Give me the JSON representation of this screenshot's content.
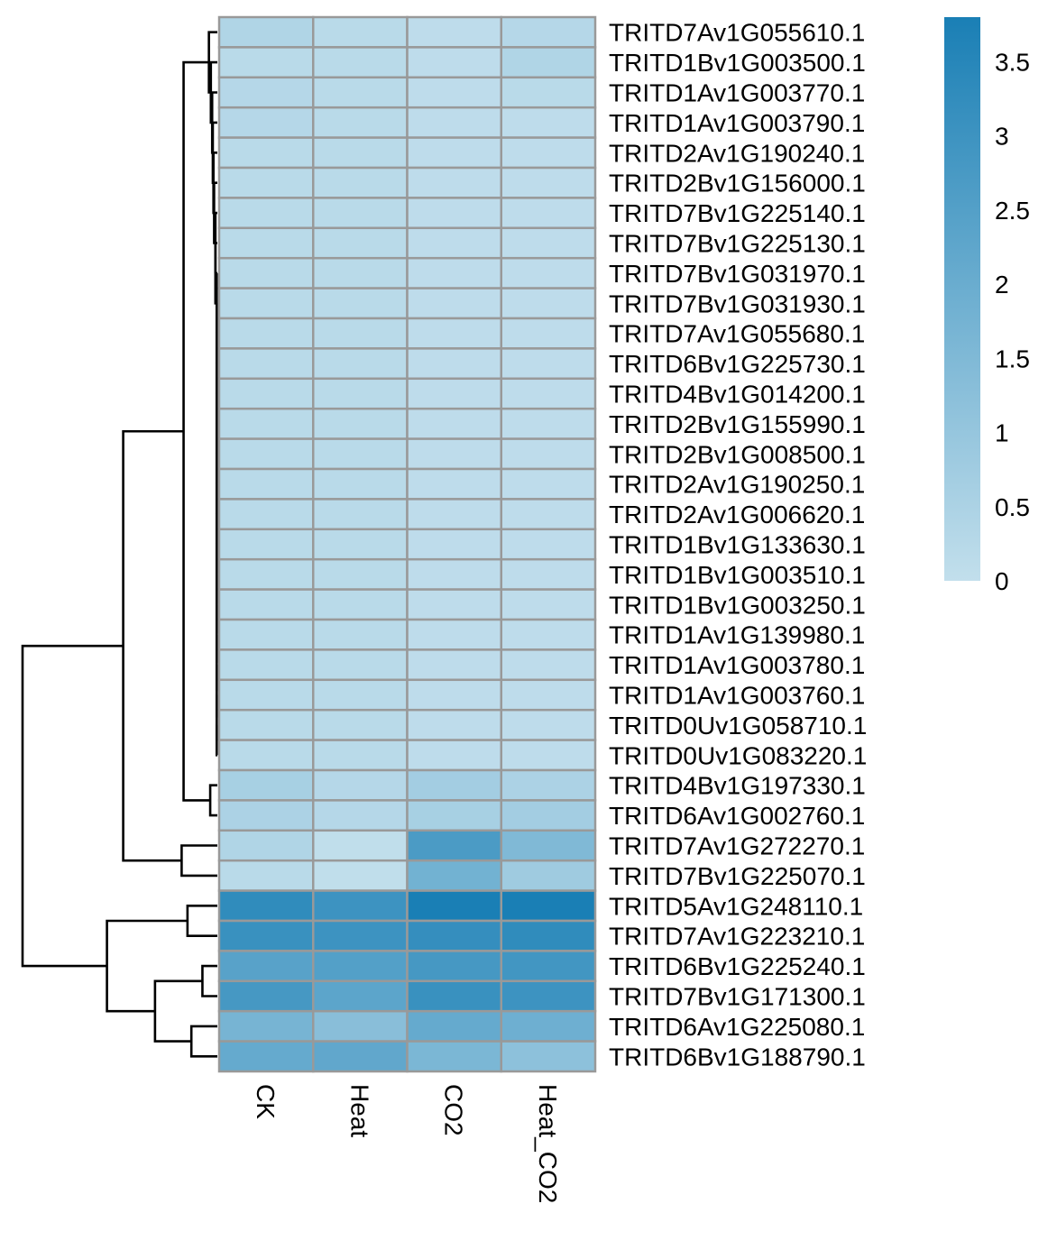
{
  "chart_data": {
    "type": "heatmap",
    "columns": [
      "CK",
      "Heat",
      "CO2",
      "Heat_CO2"
    ],
    "rows": [
      "TRITD7Av1G055610.1",
      "TRITD1Bv1G003500.1",
      "TRITD1Av1G003770.1",
      "TRITD1Av1G003790.1",
      "TRITD2Av1G190240.1",
      "TRITD2Bv1G156000.1",
      "TRITD7Bv1G225140.1",
      "TRITD7Bv1G225130.1",
      "TRITD7Bv1G031970.1",
      "TRITD7Bv1G031930.1",
      "TRITD7Av1G055680.1",
      "TRITD6Bv1G225730.1",
      "TRITD4Bv1G014200.1",
      "TRITD2Bv1G155990.1",
      "TRITD2Bv1G008500.1",
      "TRITD2Av1G190250.1",
      "TRITD2Av1G006620.1",
      "TRITD1Bv1G133630.1",
      "TRITD1Bv1G003510.1",
      "TRITD1Bv1G003250.1",
      "TRITD1Av1G139980.1",
      "TRITD1Av1G003780.1",
      "TRITD1Av1G003760.1",
      "TRITD0Uv1G058710.1",
      "TRITD0Uv1G083220.1",
      "TRITD4Bv1G197330.1",
      "TRITD6Av1G002760.1",
      "TRITD7Av1G272270.1",
      "TRITD7Bv1G225070.1",
      "TRITD5Av1G248110.1",
      "TRITD7Av1G223210.1",
      "TRITD6Bv1G225240.1",
      "TRITD7Bv1G171300.1",
      "TRITD6Av1G225080.1",
      "TRITD6Bv1G188790.1"
    ],
    "values": [
      [
        0.4,
        0.2,
        0.1,
        0.3
      ],
      [
        0.2,
        0.2,
        0.1,
        0.4
      ],
      [
        0.3,
        0.2,
        0.1,
        0.2
      ],
      [
        0.3,
        0.2,
        0.1,
        0.1
      ],
      [
        0.2,
        0.2,
        0.1,
        0.1
      ],
      [
        0.2,
        0.2,
        0.1,
        0.1
      ],
      [
        0.2,
        0.2,
        0.1,
        0.1
      ],
      [
        0.2,
        0.2,
        0.1,
        0.1
      ],
      [
        0.2,
        0.2,
        0.1,
        0.1
      ],
      [
        0.2,
        0.2,
        0.1,
        0.1
      ],
      [
        0.2,
        0.2,
        0.1,
        0.1
      ],
      [
        0.2,
        0.2,
        0.1,
        0.1
      ],
      [
        0.2,
        0.2,
        0.1,
        0.1
      ],
      [
        0.2,
        0.2,
        0.1,
        0.1
      ],
      [
        0.2,
        0.2,
        0.1,
        0.1
      ],
      [
        0.2,
        0.2,
        0.1,
        0.1
      ],
      [
        0.2,
        0.2,
        0.1,
        0.1
      ],
      [
        0.2,
        0.2,
        0.1,
        0.1
      ],
      [
        0.2,
        0.2,
        0.1,
        0.1
      ],
      [
        0.2,
        0.2,
        0.1,
        0.1
      ],
      [
        0.2,
        0.2,
        0.1,
        0.1
      ],
      [
        0.2,
        0.2,
        0.1,
        0.1
      ],
      [
        0.2,
        0.2,
        0.1,
        0.1
      ],
      [
        0.2,
        0.2,
        0.1,
        0.1
      ],
      [
        0.2,
        0.2,
        0.1,
        0.1
      ],
      [
        0.6,
        0.3,
        0.7,
        0.5
      ],
      [
        0.5,
        0.3,
        0.6,
        0.7
      ],
      [
        0.4,
        0.05,
        2.7,
        1.5
      ],
      [
        0.2,
        0.05,
        1.8,
        0.8
      ],
      [
        3.3,
        3.0,
        3.8,
        3.8
      ],
      [
        3.1,
        3.0,
        3.2,
        3.3
      ],
      [
        2.4,
        2.5,
        2.8,
        2.9
      ],
      [
        2.8,
        2.3,
        3.1,
        3.0
      ],
      [
        1.7,
        1.3,
        2.1,
        1.9
      ],
      [
        2.1,
        2.2,
        1.6,
        1.2
      ]
    ],
    "legend": {
      "ticks": [
        "0",
        "0.5",
        "1",
        "1.5",
        "2",
        "2.5",
        "3",
        "3.5"
      ],
      "min": 0,
      "max": 3.8,
      "color_low": "#c2dfec",
      "color_high": "#1a7fb5"
    },
    "grid_color": "#999999",
    "dendrogram": "rows"
  }
}
